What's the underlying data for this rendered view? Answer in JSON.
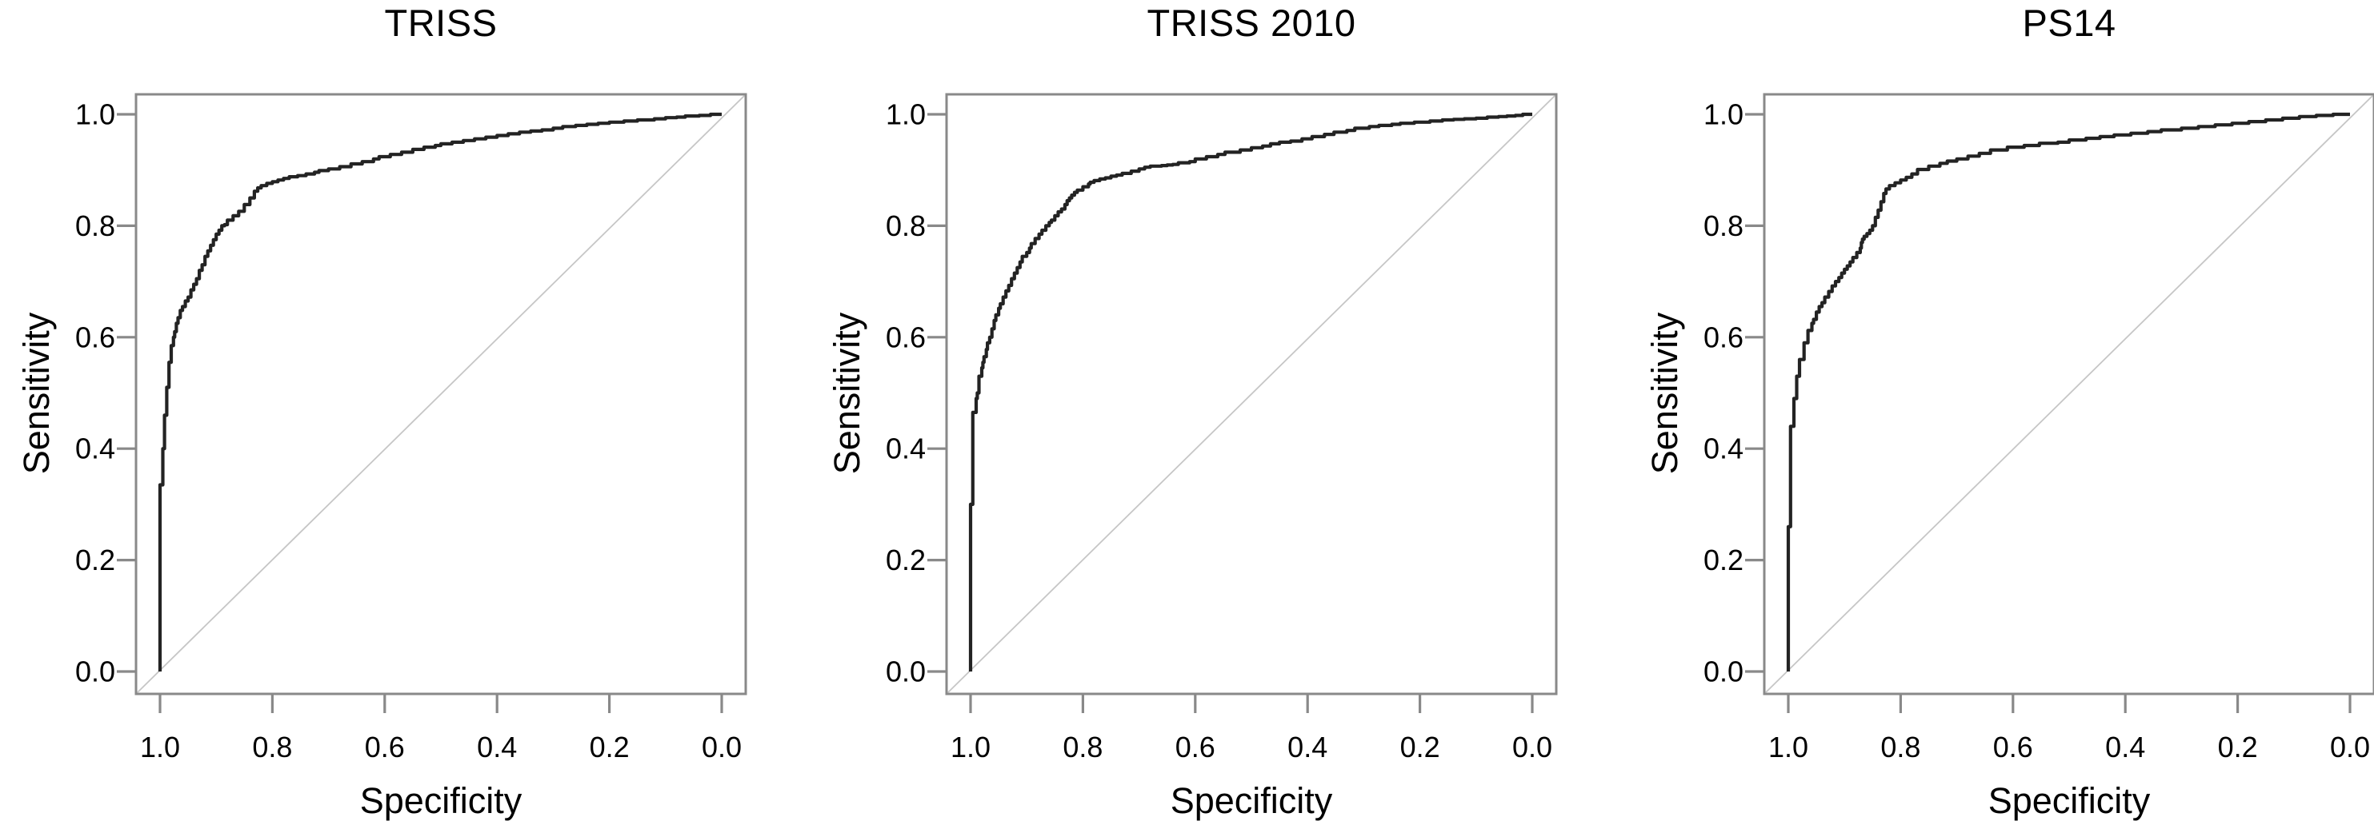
{
  "figure": {
    "background": "#ffffff",
    "colors": {
      "curve": "#232323",
      "frame": "#898989",
      "tick": "#898989",
      "diagonal": "#c6c6c6",
      "text": "#000000"
    },
    "x_tick_labels": [
      "1.0",
      "0.8",
      "0.6",
      "0.4",
      "0.2",
      "0.0"
    ],
    "y_tick_labels": [
      "1.0",
      "0.8",
      "0.6",
      "0.4",
      "0.2",
      "0.0"
    ]
  },
  "chart_data": [
    {
      "type": "line",
      "title": "TRISS",
      "xlabel": "Specificity",
      "ylabel": "Sensitivity",
      "x_axis": {
        "ticks": [
          1.0,
          0.8,
          0.6,
          0.4,
          0.2,
          0.0
        ],
        "reversed": true,
        "range": [
          1.0,
          0.0
        ]
      },
      "y_axis": {
        "ticks": [
          1.0,
          0.8,
          0.6,
          0.4,
          0.2,
          0.0
        ],
        "range": [
          0.0,
          1.0
        ]
      },
      "grid": false,
      "reference_diagonal": true,
      "legend": null,
      "series": [
        {
          "name": "ROC curve",
          "style": "step",
          "specificity": [
            1.0,
            1.0,
            0.995,
            0.995,
            0.992,
            0.992,
            0.988,
            0.988,
            0.984,
            0.984,
            0.98,
            0.98,
            0.976,
            0.974,
            0.971,
            0.968,
            0.964,
            0.96,
            0.955,
            0.95,
            0.945,
            0.94,
            0.935,
            0.93,
            0.925,
            0.92,
            0.915,
            0.91,
            0.905,
            0.9,
            0.895,
            0.89,
            0.885,
            0.88,
            0.87,
            0.86,
            0.85,
            0.84,
            0.832,
            0.826,
            0.82,
            0.81,
            0.8,
            0.79,
            0.78,
            0.77,
            0.755,
            0.74,
            0.725,
            0.717,
            0.7,
            0.68,
            0.66,
            0.64,
            0.62,
            0.61,
            0.59,
            0.57,
            0.55,
            0.53,
            0.51,
            0.5,
            0.48,
            0.46,
            0.44,
            0.42,
            0.4,
            0.38,
            0.36,
            0.34,
            0.32,
            0.3,
            0.283,
            0.26,
            0.24,
            0.22,
            0.2,
            0.174,
            0.15,
            0.12,
            0.1,
            0.08,
            0.065,
            0.04,
            0.02,
            0.0
          ],
          "sensitivity": [
            0.0,
            0.31,
            0.335,
            0.38,
            0.4,
            0.445,
            0.46,
            0.5,
            0.51,
            0.545,
            0.555,
            0.575,
            0.585,
            0.6,
            0.61,
            0.625,
            0.635,
            0.648,
            0.655,
            0.665,
            0.672,
            0.685,
            0.695,
            0.705,
            0.72,
            0.73,
            0.745,
            0.755,
            0.765,
            0.775,
            0.785,
            0.792,
            0.8,
            0.802,
            0.81,
            0.818,
            0.826,
            0.838,
            0.85,
            0.862,
            0.868,
            0.872,
            0.876,
            0.879,
            0.882,
            0.885,
            0.888,
            0.89,
            0.893,
            0.896,
            0.899,
            0.902,
            0.906,
            0.911,
            0.915,
            0.92,
            0.924,
            0.928,
            0.932,
            0.937,
            0.941,
            0.944,
            0.947,
            0.95,
            0.953,
            0.956,
            0.959,
            0.962,
            0.965,
            0.968,
            0.97,
            0.972,
            0.975,
            0.978,
            0.98,
            0.982,
            0.984,
            0.986,
            0.988,
            0.99,
            0.992,
            0.994,
            0.995,
            0.997,
            0.998,
            1.0
          ]
        }
      ]
    },
    {
      "type": "line",
      "title": "TRISS 2010",
      "xlabel": "Specificity",
      "ylabel": "Sensitivity",
      "x_axis": {
        "ticks": [
          1.0,
          0.8,
          0.6,
          0.4,
          0.2,
          0.0
        ],
        "reversed": true,
        "range": [
          1.0,
          0.0
        ]
      },
      "y_axis": {
        "ticks": [
          1.0,
          0.8,
          0.6,
          0.4,
          0.2,
          0.0
        ],
        "range": [
          0.0,
          1.0
        ]
      },
      "grid": false,
      "reference_diagonal": true,
      "legend": null,
      "series": [
        {
          "name": "ROC curve",
          "style": "step",
          "specificity": [
            1.0,
            1.0,
            0.996,
            0.996,
            0.99,
            0.99,
            0.988,
            0.985,
            0.985,
            0.98,
            0.978,
            0.976,
            0.972,
            0.97,
            0.966,
            0.962,
            0.958,
            0.955,
            0.95,
            0.947,
            0.942,
            0.937,
            0.932,
            0.927,
            0.922,
            0.917,
            0.912,
            0.908,
            0.9,
            0.895,
            0.892,
            0.885,
            0.878,
            0.873,
            0.866,
            0.86,
            0.856,
            0.85,
            0.844,
            0.838,
            0.832,
            0.828,
            0.824,
            0.82,
            0.815,
            0.81,
            0.8,
            0.79,
            0.787,
            0.78,
            0.77,
            0.76,
            0.75,
            0.74,
            0.73,
            0.714,
            0.7,
            0.69,
            0.68,
            0.66,
            0.65,
            0.64,
            0.63,
            0.61,
            0.6,
            0.58,
            0.56,
            0.547,
            0.52,
            0.5,
            0.48,
            0.466,
            0.45,
            0.43,
            0.41,
            0.392,
            0.37,
            0.353,
            0.33,
            0.316,
            0.29,
            0.273,
            0.25,
            0.235,
            0.21,
            0.182,
            0.16,
            0.14,
            0.121,
            0.1,
            0.08,
            0.06,
            0.045,
            0.03,
            0.017,
            0.0
          ],
          "sensitivity": [
            0.0,
            0.29,
            0.3,
            0.455,
            0.465,
            0.475,
            0.49,
            0.5,
            0.52,
            0.53,
            0.545,
            0.555,
            0.565,
            0.578,
            0.59,
            0.6,
            0.615,
            0.63,
            0.64,
            0.652,
            0.66,
            0.672,
            0.683,
            0.693,
            0.705,
            0.715,
            0.725,
            0.735,
            0.745,
            0.752,
            0.76,
            0.768,
            0.777,
            0.785,
            0.792,
            0.8,
            0.806,
            0.81,
            0.818,
            0.825,
            0.83,
            0.838,
            0.845,
            0.85,
            0.855,
            0.86,
            0.864,
            0.87,
            0.875,
            0.878,
            0.881,
            0.884,
            0.886,
            0.889,
            0.891,
            0.894,
            0.898,
            0.902,
            0.905,
            0.907,
            0.908,
            0.909,
            0.91,
            0.913,
            0.915,
            0.92,
            0.924,
            0.928,
            0.932,
            0.936,
            0.94,
            0.943,
            0.947,
            0.95,
            0.952,
            0.956,
            0.96,
            0.964,
            0.968,
            0.971,
            0.975,
            0.978,
            0.98,
            0.982,
            0.984,
            0.986,
            0.988,
            0.99,
            0.991,
            0.992,
            0.993,
            0.995,
            0.996,
            0.997,
            0.998,
            1.0
          ]
        }
      ]
    },
    {
      "type": "line",
      "title": "PS14",
      "xlabel": "Specificity",
      "ylabel": "Sensitivity",
      "x_axis": {
        "ticks": [
          1.0,
          0.8,
          0.6,
          0.4,
          0.2,
          0.0
        ],
        "reversed": true,
        "range": [
          1.0,
          0.0
        ]
      },
      "y_axis": {
        "ticks": [
          1.0,
          0.8,
          0.6,
          0.4,
          0.2,
          0.0
        ],
        "range": [
          0.0,
          1.0
        ]
      },
      "grid": false,
      "reference_diagonal": true,
      "legend": null,
      "series": [
        {
          "name": "ROC curve",
          "style": "step",
          "specificity": [
            1.0,
            1.0,
            0.996,
            0.996,
            0.99,
            0.99,
            0.985,
            0.985,
            0.98,
            0.98,
            0.972,
            0.972,
            0.965,
            0.965,
            0.958,
            0.955,
            0.95,
            0.945,
            0.94,
            0.935,
            0.928,
            0.922,
            0.916,
            0.91,
            0.905,
            0.9,
            0.895,
            0.89,
            0.885,
            0.878,
            0.872,
            0.87,
            0.868,
            0.865,
            0.86,
            0.855,
            0.85,
            0.845,
            0.84,
            0.835,
            0.83,
            0.826,
            0.82,
            0.81,
            0.8,
            0.79,
            0.78,
            0.77,
            0.75,
            0.73,
            0.717,
            0.7,
            0.68,
            0.66,
            0.64,
            0.61,
            0.58,
            0.553,
            0.52,
            0.5,
            0.47,
            0.445,
            0.42,
            0.39,
            0.36,
            0.336,
            0.3,
            0.27,
            0.24,
            0.21,
            0.18,
            0.15,
            0.12,
            0.09,
            0.06,
            0.03,
            0.0
          ],
          "sensitivity": [
            0.0,
            0.235,
            0.26,
            0.42,
            0.44,
            0.47,
            0.49,
            0.52,
            0.53,
            0.55,
            0.56,
            0.58,
            0.59,
            0.605,
            0.612,
            0.625,
            0.632,
            0.645,
            0.655,
            0.662,
            0.672,
            0.682,
            0.692,
            0.7,
            0.707,
            0.715,
            0.722,
            0.728,
            0.735,
            0.743,
            0.752,
            0.76,
            0.77,
            0.776,
            0.781,
            0.786,
            0.792,
            0.8,
            0.815,
            0.828,
            0.843,
            0.858,
            0.866,
            0.872,
            0.877,
            0.882,
            0.887,
            0.893,
            0.901,
            0.907,
            0.912,
            0.916,
            0.92,
            0.925,
            0.93,
            0.936,
            0.941,
            0.944,
            0.948,
            0.95,
            0.954,
            0.957,
            0.96,
            0.963,
            0.966,
            0.969,
            0.972,
            0.975,
            0.978,
            0.981,
            0.984,
            0.987,
            0.99,
            0.993,
            0.996,
            0.998,
            1.0
          ]
        }
      ]
    }
  ]
}
